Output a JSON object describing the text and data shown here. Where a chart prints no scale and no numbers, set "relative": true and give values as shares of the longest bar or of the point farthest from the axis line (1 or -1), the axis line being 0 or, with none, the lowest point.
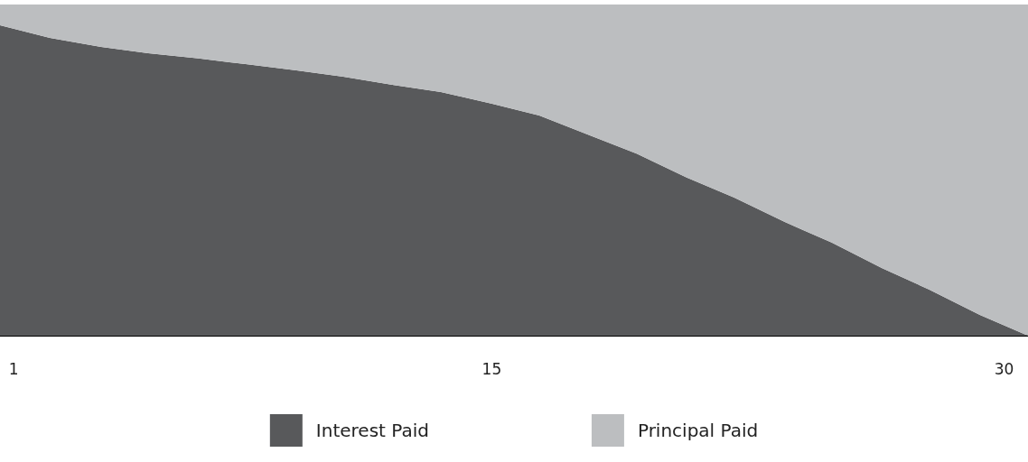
{
  "chart_data": {
    "type": "area",
    "stacked": true,
    "relative": true,
    "x": [
      0.6,
      2.06,
      3.56,
      4.94,
      6.42,
      7.79,
      9.28,
      10.65,
      12.13,
      13.51,
      15.01,
      16.39,
      17.87,
      19.24,
      20.72,
      22.1,
      23.58,
      24.95,
      26.43,
      27.81,
      29.29,
      30.7
    ],
    "xlim": [
      0.6,
      30.7
    ],
    "xticks": [
      1,
      15,
      30
    ],
    "series": [
      {
        "name": "Interest Paid",
        "color": "#58595b",
        "values": [
          0.937,
          0.899,
          0.872,
          0.853,
          0.837,
          0.82,
          0.801,
          0.782,
          0.757,
          0.736,
          0.7,
          0.665,
          0.605,
          0.55,
          0.477,
          0.417,
          0.343,
          0.281,
          0.204,
          0.139,
          0.063,
          0
        ]
      },
      {
        "name": "Principal Paid",
        "color": "#bcbec0",
        "values": [
          0.063,
          0.101,
          0.128,
          0.147,
          0.163,
          0.18,
          0.199,
          0.218,
          0.243,
          0.264,
          0.3,
          0.335,
          0.395,
          0.45,
          0.523,
          0.583,
          0.657,
          0.719,
          0.796,
          0.861,
          0.937,
          1
        ]
      }
    ],
    "legend": "bottom"
  }
}
